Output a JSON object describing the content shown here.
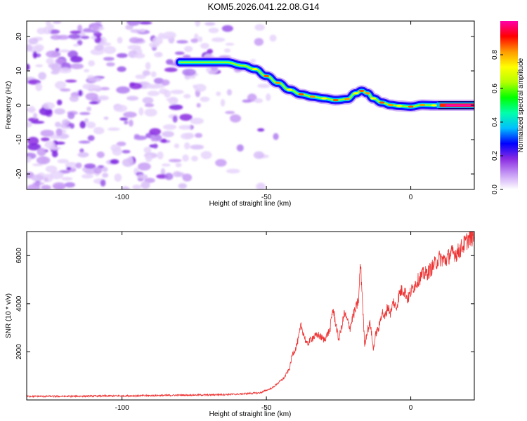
{
  "title": "KOM5.2026.041.22.08.G14",
  "chart_data": [
    {
      "type": "heatmap",
      "xlabel": "Height of straight line (km)",
      "ylabel": "Frequency (Hz)",
      "xlim": [
        -133,
        22
      ],
      "ylim": [
        -24.5,
        24.5
      ],
      "xticks": [
        -100,
        -50,
        0
      ],
      "yticks": [
        -20,
        -10,
        0,
        10,
        20
      ],
      "ridge": {
        "x": [
          -80,
          -70,
          -64,
          -58,
          -54,
          -50,
          -46,
          -42,
          -38,
          -34,
          -30,
          -26,
          -22,
          -19,
          -17,
          -15,
          -13,
          -10,
          -7,
          -4,
          0,
          4,
          8,
          12,
          16,
          22
        ],
        "y": [
          12.5,
          12.5,
          12.5,
          11.5,
          10.5,
          8.5,
          6.5,
          4.5,
          3.2,
          2.5,
          2.0,
          1.5,
          1.8,
          3.5,
          4.2,
          3.5,
          2.0,
          0.8,
          0.1,
          -0.2,
          -0.4,
          0.1,
          0.0,
          0.0,
          0.0,
          0.0
        ]
      },
      "noise_region_x": [
        -133,
        -45
      ],
      "colorbar": {
        "label": "Normalized spectral amplitude",
        "range": [
          0.0,
          1.0
        ],
        "ticks": [
          0.0,
          0.2,
          0.4,
          0.6,
          0.8
        ],
        "tick_labels": [
          "0.0",
          "0.2",
          "0.4",
          "0.6",
          "0.8"
        ],
        "colors": [
          "#ffffff",
          "#c79bf5",
          "#8a2be2",
          "#0000ff",
          "#00bfff",
          "#00ffaa",
          "#00ff00",
          "#b5ff00",
          "#ffff00",
          "#ff9900",
          "#ff0000",
          "#ff00aa"
        ]
      }
    },
    {
      "type": "line",
      "xlabel": "Height of straight line (km)",
      "ylabel": "SNR (10 * v/v)",
      "xlim": [
        -133,
        22
      ],
      "ylim": [
        0,
        7000
      ],
      "xticks": [
        -100,
        -50,
        0
      ],
      "yticks": [
        2000,
        4000,
        6000
      ],
      "series": [
        {
          "color": "#ee3333",
          "x": [
            -133,
            -120,
            -110,
            -100,
            -90,
            -80,
            -70,
            -60,
            -52,
            -48,
            -46,
            -44,
            -42,
            -41,
            -40,
            -39,
            -38,
            -36,
            -34,
            -32,
            -30,
            -28,
            -27,
            -26,
            -25,
            -24,
            -23,
            -22,
            -21,
            -20,
            -19,
            -18,
            -17.5,
            -17,
            -16,
            -15,
            -14,
            -13,
            -12,
            -11,
            -10,
            -9,
            -8,
            -7,
            -6,
            -5,
            -4,
            -3,
            -2,
            -1,
            0,
            2,
            4,
            6,
            8,
            10,
            12,
            14,
            16,
            18,
            20,
            22
          ],
          "y": [
            150,
            150,
            160,
            170,
            180,
            200,
            210,
            240,
            300,
            500,
            700,
            900,
            1300,
            1900,
            2100,
            2500,
            3100,
            2300,
            2600,
            2700,
            2500,
            2900,
            3800,
            3200,
            2500,
            3000,
            3600,
            3300,
            3000,
            3500,
            3800,
            4200,
            5700,
            4800,
            2300,
            2900,
            3200,
            2100,
            2800,
            3000,
            3700,
            3400,
            3900,
            3600,
            4100,
            3800,
            4400,
            4600,
            4500,
            4200,
            4500,
            4900,
            5200,
            5300,
            5600,
            5900,
            5800,
            6100,
            6100,
            6400,
            6700,
            6800
          ]
        }
      ]
    }
  ]
}
